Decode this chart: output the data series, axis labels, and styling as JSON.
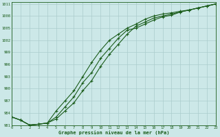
{
  "title": "Graphe pression niveau de la mer (hPa)",
  "bg_color": "#cce8e8",
  "grid_color": "#aacccc",
  "line_color": "#1a5c1a",
  "xlim": [
    0,
    23
  ],
  "ylim": [
    981,
    1011.5
  ],
  "yticks": [
    981,
    984,
    987,
    990,
    993,
    996,
    999,
    1002,
    1005,
    1008,
    1011
  ],
  "xticks": [
    0,
    1,
    2,
    3,
    4,
    5,
    6,
    7,
    8,
    9,
    10,
    11,
    12,
    13,
    14,
    15,
    16,
    17,
    18,
    19,
    20,
    21,
    22,
    23
  ],
  "series1": [
    983.0,
    982.2,
    981.0,
    981.2,
    981.5,
    983.0,
    985.5,
    988.0,
    991.5,
    994.0,
    997.5,
    1000.0,
    1002.5,
    1004.5,
    1005.0,
    1006.0,
    1007.0,
    1007.8,
    1008.2,
    1009.0,
    1009.5,
    1010.0,
    1010.5,
    1011.0
  ],
  "series2": [
    983.0,
    982.2,
    981.0,
    981.2,
    981.5,
    984.5,
    987.0,
    989.5,
    993.0,
    996.5,
    999.5,
    1002.0,
    1003.5,
    1005.0,
    1006.0,
    1007.2,
    1008.0,
    1008.5,
    1008.8,
    1009.2,
    1009.5,
    1010.0,
    1010.5,
    1011.0
  ],
  "series3": [
    983.0,
    982.2,
    981.0,
    981.2,
    981.5,
    982.5,
    984.5,
    986.5,
    989.5,
    992.0,
    995.5,
    998.5,
    1001.0,
    1003.5,
    1005.5,
    1006.5,
    1007.5,
    1008.0,
    1008.5,
    1009.0,
    1009.5,
    1010.0,
    1010.5,
    1011.0
  ]
}
